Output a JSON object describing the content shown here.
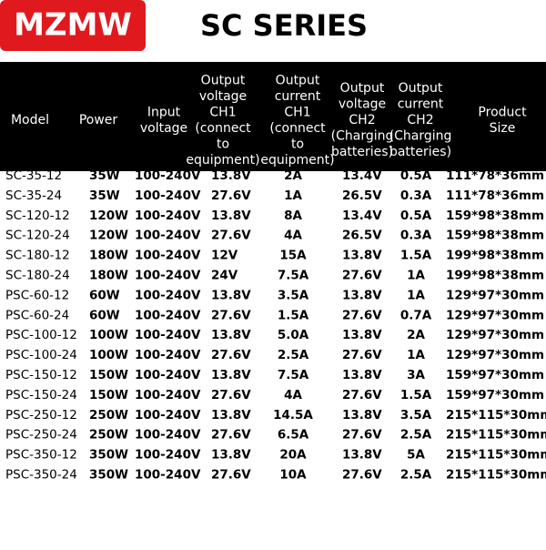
{
  "header": {
    "logo": "MZMW",
    "title": "SC SERIES"
  },
  "table": {
    "columns": [
      [
        "Model"
      ],
      [
        "Power"
      ],
      [
        "Input",
        "voltage"
      ],
      [
        "Output",
        "voltage",
        "CH1",
        "(connect",
        "to",
        "equipment)"
      ],
      [
        "Output",
        "current",
        "CH1",
        "(connect",
        "to",
        "equipment)"
      ],
      [
        "Output",
        "voltage",
        "CH2",
        "(Charging",
        "batteries)"
      ],
      [
        "Output",
        "current",
        "CH2",
        "(Charging",
        "batteries)"
      ],
      [
        "Product",
        "Size"
      ]
    ],
    "rows": [
      [
        "SC-35-12",
        "35W",
        "100-240V",
        "13.8V",
        "2A",
        "13.4V",
        "0.5A",
        "111*78*36mm"
      ],
      [
        "SC-35-24",
        "35W",
        "100-240V",
        "27.6V",
        "1A",
        "26.5V",
        "0.3A",
        "111*78*36mm"
      ],
      [
        "SC-120-12",
        "120W",
        "100-240V",
        "13.8V",
        "8A",
        "13.4V",
        "0.5A",
        "159*98*38mm"
      ],
      [
        "SC-120-24",
        "120W",
        "100-240V",
        "27.6V",
        "4A",
        "26.5V",
        "0.3A",
        "159*98*38mm"
      ],
      [
        "SC-180-12",
        "180W",
        "100-240V",
        "12V",
        "15A",
        "13.8V",
        "1.5A",
        "199*98*38mm"
      ],
      [
        "SC-180-24",
        "180W",
        "100-240V",
        "24V",
        "7.5A",
        "27.6V",
        "1A",
        "199*98*38mm"
      ],
      [
        "PSC-60-12",
        "60W",
        "100-240V",
        "13.8V",
        "3.5A",
        "13.8V",
        "1A",
        "129*97*30mm"
      ],
      [
        "PSC-60-24",
        "60W",
        "100-240V",
        "27.6V",
        "1.5A",
        "27.6V",
        "0.7A",
        "129*97*30mm"
      ],
      [
        "PSC-100-12",
        "100W",
        "100-240V",
        "13.8V",
        "5.0A",
        "13.8V",
        "2A",
        "129*97*30mm"
      ],
      [
        "PSC-100-24",
        "100W",
        "100-240V",
        "27.6V",
        "2.5A",
        "27.6V",
        "1A",
        "129*97*30mm"
      ],
      [
        "PSC-150-12",
        "150W",
        "100-240V",
        "13.8V",
        "7.5A",
        "13.8V",
        "3A",
        "159*97*30mm"
      ],
      [
        "PSC-150-24",
        "150W",
        "100-240V",
        "27.6V",
        "4A",
        "27.6V",
        "1.5A",
        "159*97*30mm"
      ],
      [
        "PSC-250-12",
        "250W",
        "100-240V",
        "13.8V",
        "14.5A",
        "13.8V",
        "3.5A",
        "215*115*30mm"
      ],
      [
        "PSC-250-24",
        "250W",
        "100-240V",
        "27.6V",
        "6.5A",
        "27.6V",
        "2.5A",
        "215*115*30mm"
      ],
      [
        "PSC-350-12",
        "350W",
        "100-240V",
        "13.8V",
        "20A",
        "13.8V",
        "5A",
        "215*115*30mm"
      ],
      [
        "PSC-350-24",
        "350W",
        "100-240V",
        "27.6V",
        "10A",
        "27.6V",
        "2.5A",
        "215*115*30mm"
      ]
    ]
  }
}
